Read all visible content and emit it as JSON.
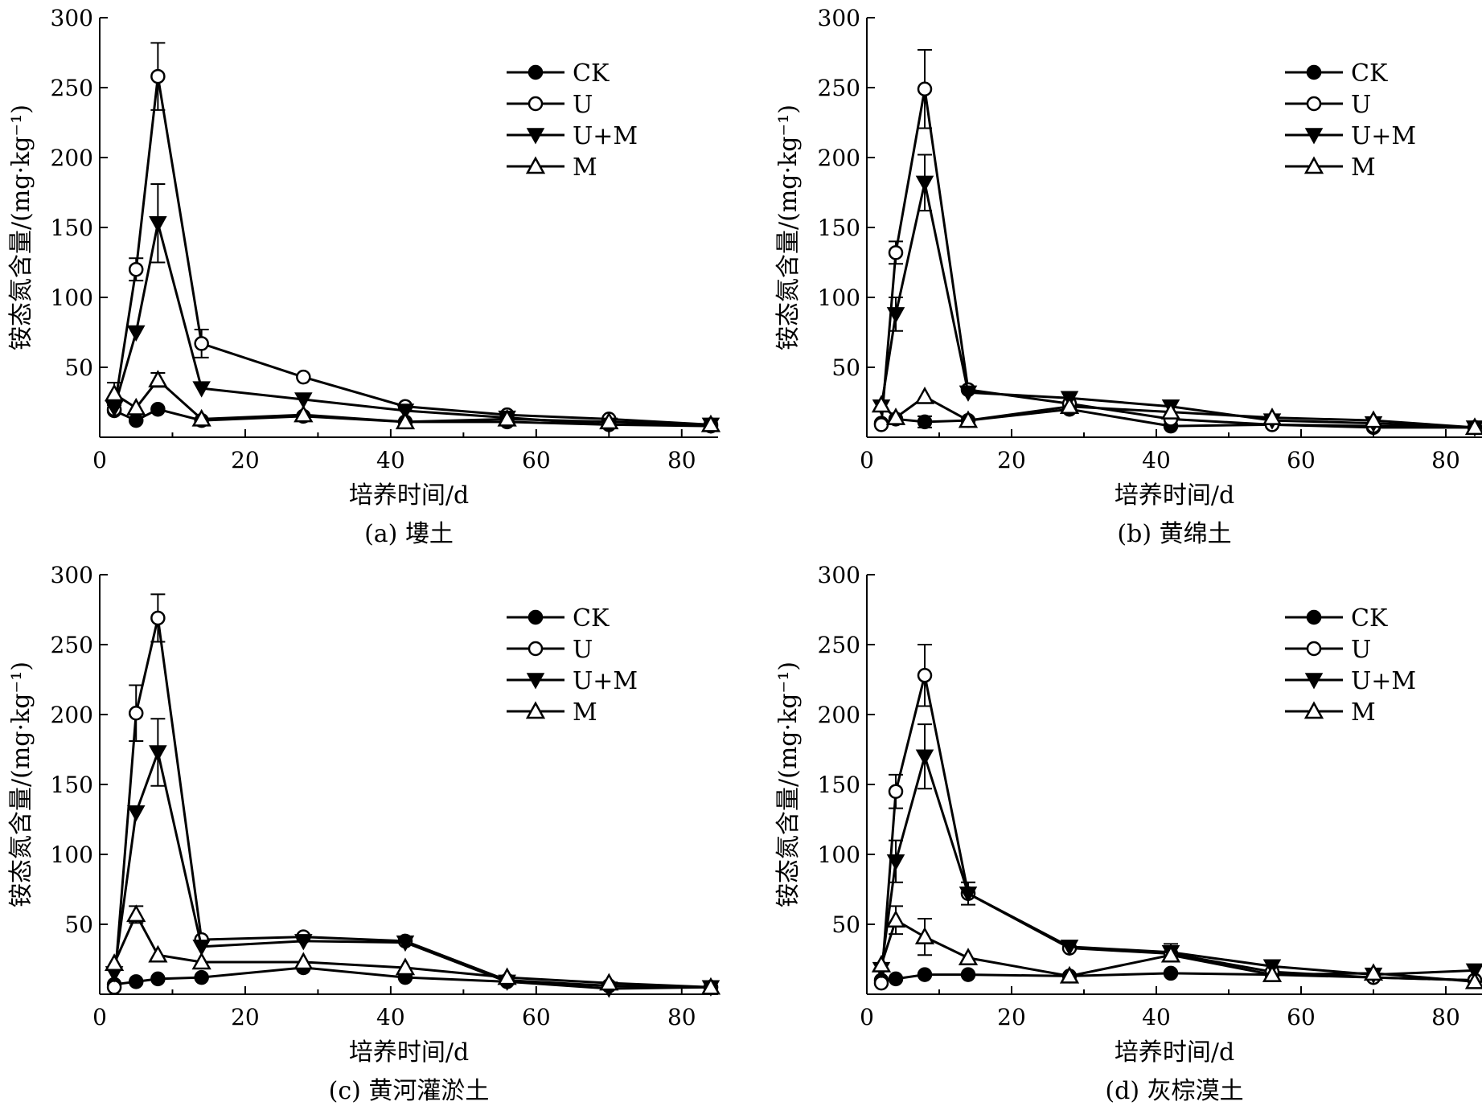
{
  "chart_data": [
    {
      "type": "line",
      "caption": "(a) 塿土",
      "xlabel": "培养时间/d",
      "ylabel": "铵态氮含量/(mg·kg⁻¹)",
      "xlim": [
        0,
        85
      ],
      "ylim": [
        0,
        300
      ],
      "xticks": [
        0,
        20,
        40,
        60,
        80
      ],
      "yticks": [
        50,
        100,
        150,
        200,
        250,
        300
      ],
      "legend_position": "top-right",
      "series": [
        {
          "name": "CK",
          "marker": "filled-circle",
          "x": [
            2,
            5,
            8,
            14,
            28,
            42,
            56,
            70,
            84
          ],
          "y": [
            19,
            12,
            20,
            12,
            15,
            11,
            11,
            9,
            8
          ]
        },
        {
          "name": "U",
          "marker": "open-circle",
          "x": [
            2,
            5,
            8,
            14,
            28,
            42,
            56,
            70,
            84
          ],
          "y": [
            20,
            120,
            258,
            67,
            43,
            22,
            16,
            13,
            9
          ],
          "err": [
            0,
            8,
            24,
            10,
            0,
            0,
            0,
            0,
            0
          ]
        },
        {
          "name": "U+M",
          "marker": "filled-triangle-down",
          "x": [
            2,
            5,
            8,
            14,
            28,
            42,
            56,
            70,
            84
          ],
          "y": [
            21,
            75,
            153,
            35,
            27,
            19,
            14,
            9,
            9
          ],
          "err": [
            0,
            0,
            28,
            0,
            0,
            0,
            0,
            0,
            0
          ]
        },
        {
          "name": "M",
          "marker": "open-triangle-up",
          "x": [
            2,
            5,
            8,
            14,
            28,
            42,
            56,
            70,
            84
          ],
          "y": [
            31,
            21,
            41,
            13,
            16,
            11,
            13,
            11,
            9
          ],
          "err": [
            8,
            0,
            5,
            0,
            0,
            0,
            0,
            0,
            0
          ]
        }
      ]
    },
    {
      "type": "line",
      "caption": "(b) 黄绵土",
      "xlabel": "培养时间/d",
      "ylabel": "铵态氮含量/(mg·kg⁻¹)",
      "xlim": [
        0,
        85
      ],
      "ylim": [
        0,
        300
      ],
      "xticks": [
        0,
        20,
        40,
        60,
        80
      ],
      "yticks": [
        50,
        100,
        150,
        200,
        250,
        300
      ],
      "legend_position": "top-right",
      "series": [
        {
          "name": "CK",
          "marker": "filled-circle",
          "x": [
            2,
            4,
            8,
            14,
            28,
            42,
            56,
            70,
            84
          ],
          "y": [
            10,
            13,
            11,
            12,
            20,
            8,
            9,
            7,
            7
          ],
          "err": [
            0,
            0,
            4,
            0,
            0,
            0,
            0,
            0,
            0
          ]
        },
        {
          "name": "U",
          "marker": "open-circle",
          "x": [
            2,
            4,
            8,
            14,
            28,
            42,
            56,
            70,
            84
          ],
          "y": [
            9,
            132,
            249,
            34,
            24,
            13,
            9,
            8,
            7
          ],
          "err": [
            0,
            8,
            28,
            0,
            0,
            0,
            0,
            0,
            0
          ]
        },
        {
          "name": "U+M",
          "marker": "filled-triangle-down",
          "x": [
            2,
            4,
            8,
            14,
            28,
            42,
            56,
            70,
            84
          ],
          "y": [
            22,
            88,
            182,
            32,
            28,
            22,
            12,
            10,
            7
          ],
          "err": [
            0,
            12,
            20,
            0,
            0,
            0,
            0,
            0,
            0
          ]
        },
        {
          "name": "M",
          "marker": "open-triangle-up",
          "x": [
            2,
            4,
            8,
            14,
            28,
            42,
            56,
            70,
            84
          ],
          "y": [
            23,
            14,
            29,
            12,
            22,
            18,
            14,
            12,
            7
          ]
        }
      ]
    },
    {
      "type": "line",
      "caption": "(c) 黄河灌淤土",
      "xlabel": "培养时间/d",
      "ylabel": "铵态氮含量/(mg·kg⁻¹)",
      "xlim": [
        0,
        85
      ],
      "ylim": [
        0,
        300
      ],
      "xticks": [
        0,
        20,
        40,
        60,
        80
      ],
      "yticks": [
        50,
        100,
        150,
        200,
        250,
        300
      ],
      "legend_position": "top-right",
      "series": [
        {
          "name": "CK",
          "marker": "filled-circle",
          "x": [
            2,
            5,
            8,
            14,
            28,
            42,
            56,
            70,
            84
          ],
          "y": [
            7,
            9,
            11,
            12,
            19,
            12,
            9,
            6,
            5
          ]
        },
        {
          "name": "U",
          "marker": "open-circle",
          "x": [
            2,
            5,
            8,
            14,
            28,
            42,
            56,
            70,
            84
          ],
          "y": [
            5,
            201,
            269,
            39,
            41,
            38,
            10,
            6,
            5
          ],
          "err": [
            0,
            20,
            17,
            0,
            0,
            0,
            0,
            0,
            0
          ]
        },
        {
          "name": "U+M",
          "marker": "filled-triangle-down",
          "x": [
            2,
            5,
            8,
            14,
            28,
            42,
            56,
            70,
            84
          ],
          "y": [
            15,
            130,
            173,
            34,
            38,
            37,
            9,
            4,
            5
          ],
          "err": [
            0,
            0,
            24,
            0,
            0,
            0,
            0,
            0,
            0
          ]
        },
        {
          "name": "M",
          "marker": "open-triangle-up",
          "x": [
            2,
            5,
            8,
            14,
            28,
            42,
            56,
            70,
            84
          ],
          "y": [
            22,
            57,
            28,
            23,
            23,
            19,
            12,
            8,
            5
          ],
          "err": [
            0,
            6,
            0,
            0,
            0,
            0,
            0,
            0,
            0
          ]
        }
      ]
    },
    {
      "type": "line",
      "caption": "(d) 灰棕漠土",
      "xlabel": "培养时间/d",
      "ylabel": "铵态氮含量/(mg·kg⁻¹)",
      "xlim": [
        0,
        85
      ],
      "ylim": [
        0,
        300
      ],
      "xticks": [
        0,
        20,
        40,
        60,
        80
      ],
      "yticks": [
        50,
        100,
        150,
        200,
        250,
        300
      ],
      "legend_position": "top-right",
      "series": [
        {
          "name": "CK",
          "marker": "filled-circle",
          "x": [
            2,
            4,
            8,
            14,
            28,
            42,
            56,
            70,
            84
          ],
          "y": [
            10,
            11,
            14,
            14,
            13,
            15,
            14,
            12,
            10
          ]
        },
        {
          "name": "U",
          "marker": "open-circle",
          "x": [
            2,
            4,
            8,
            14,
            28,
            42,
            56,
            70,
            84
          ],
          "y": [
            8,
            145,
            228,
            72,
            33,
            29,
            16,
            12,
            10
          ],
          "err": [
            0,
            12,
            22,
            0,
            0,
            0,
            0,
            0,
            0
          ]
        },
        {
          "name": "U+M",
          "marker": "filled-triangle-down",
          "x": [
            2,
            4,
            8,
            14,
            28,
            42,
            56,
            70,
            84
          ],
          "y": [
            18,
            95,
            170,
            72,
            34,
            30,
            20,
            14,
            17
          ],
          "err": [
            0,
            15,
            23,
            8,
            0,
            6,
            0,
            0,
            0
          ]
        },
        {
          "name": "M",
          "marker": "open-triangle-up",
          "x": [
            2,
            4,
            8,
            14,
            28,
            42,
            56,
            70,
            84
          ],
          "y": [
            21,
            53,
            41,
            26,
            13,
            28,
            14,
            15,
            9
          ],
          "err": [
            0,
            10,
            13,
            0,
            0,
            0,
            0,
            0,
            0
          ]
        }
      ]
    }
  ]
}
